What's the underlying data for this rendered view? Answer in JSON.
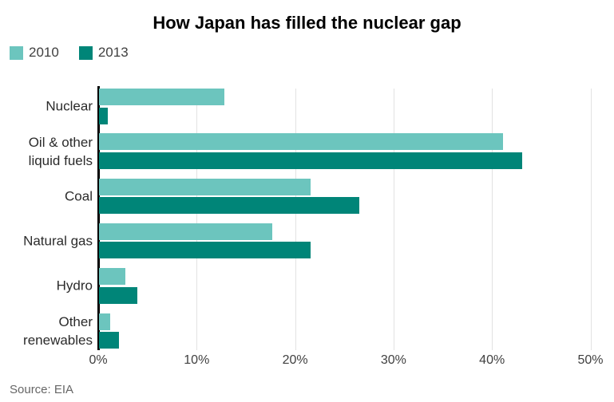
{
  "title": "How Japan has filled the nuclear gap",
  "source": "Source: EIA",
  "legend": [
    {
      "label": "2010",
      "color": "#6CC5BE"
    },
    {
      "label": "2013",
      "color": "#008578"
    }
  ],
  "chart_data": {
    "type": "bar",
    "orientation": "horizontal",
    "title": "How Japan has filled the nuclear gap",
    "categories": [
      "Nuclear",
      "Oil & other\nliquid fuels",
      "Coal",
      "Natural gas",
      "Hydro",
      "Other\nrenewables"
    ],
    "series": [
      {
        "name": "2010",
        "color": "#6CC5BE",
        "values": [
          12.7,
          41.0,
          21.5,
          17.6,
          2.7,
          1.1
        ]
      },
      {
        "name": "2013",
        "color": "#008578",
        "values": [
          0.9,
          43.0,
          26.4,
          21.5,
          3.9,
          2.0
        ]
      }
    ],
    "unit": "%",
    "xlim": [
      0,
      50
    ],
    "x_ticks": [
      0,
      10,
      20,
      30,
      40,
      50
    ],
    "x_tick_labels": [
      "0%",
      "10%",
      "20%",
      "30%",
      "40%",
      "50%"
    ],
    "grid": true,
    "legend_position": "top-left",
    "source": "Source: EIA"
  }
}
